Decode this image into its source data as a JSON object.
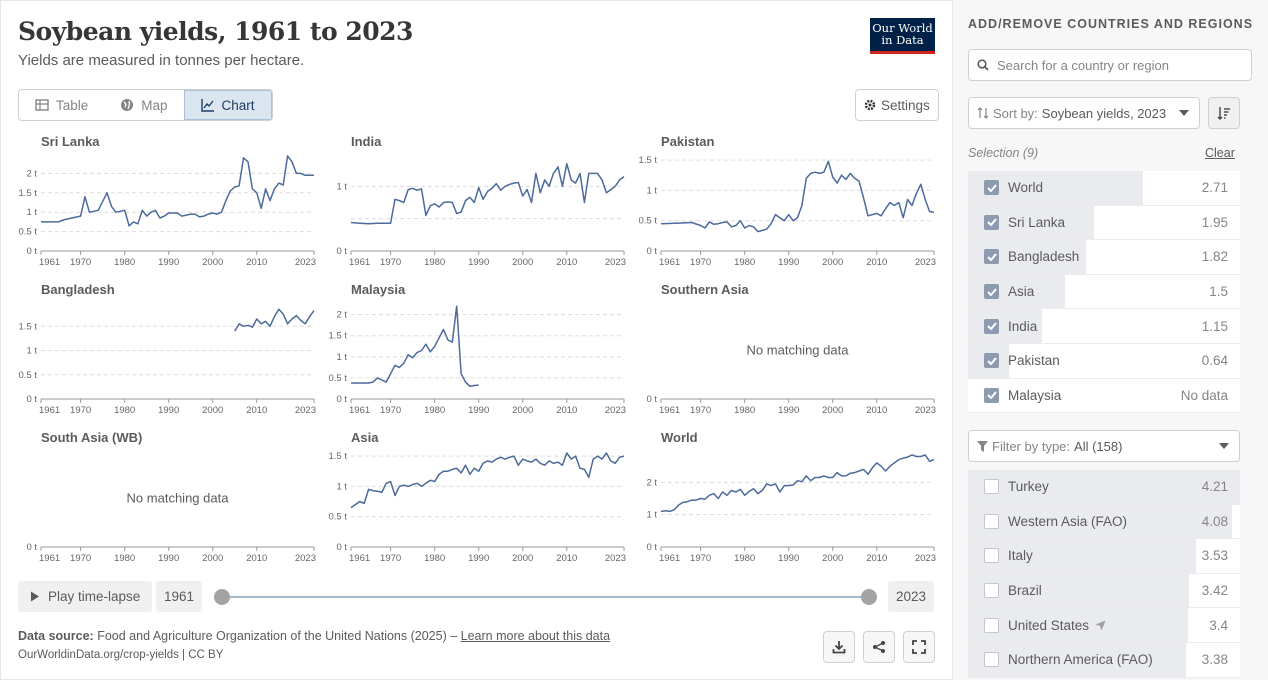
{
  "header": {
    "title": "Soybean yields, 1961 to 2023",
    "subtitle": "Yields are measured in tonnes per hectare.",
    "logo_line1": "Our World",
    "logo_line2": "in Data"
  },
  "tabs": [
    {
      "label": "Table",
      "icon": "table-icon"
    },
    {
      "label": "Map",
      "icon": "globe-icon"
    },
    {
      "label": "Chart",
      "icon": "line-chart-icon",
      "active": true
    }
  ],
  "settings_label": "Settings",
  "colors": {
    "line": "#4c6a9c",
    "accent": "#ce261e",
    "brand": "#002147"
  },
  "timeline": {
    "play_label": "Play time-lapse",
    "start_year": "1961",
    "end_year": "2023"
  },
  "footer": {
    "source_label": "Data source:",
    "source_text": "Food and Agriculture Organization of the United Nations (2025) –",
    "learn_more": "Learn more about this data",
    "url": "OurWorldinData.org/crop-yields | CC BY"
  },
  "sidebar": {
    "heading": "ADD/REMOVE COUNTRIES AND REGIONS",
    "search_placeholder": "Search for a country or region",
    "sort_label": "Sort by:",
    "sort_value": "Soybean yields, 2023",
    "selection_label": "Selection (9)",
    "clear_label": "Clear",
    "selected": [
      {
        "name": "World",
        "value": "2.71",
        "fraction": 0.644
      },
      {
        "name": "Sri Lanka",
        "value": "1.95",
        "fraction": 0.463
      },
      {
        "name": "Bangladesh",
        "value": "1.82",
        "fraction": 0.432
      },
      {
        "name": "Asia",
        "value": "1.5",
        "fraction": 0.356
      },
      {
        "name": "India",
        "value": "1.15",
        "fraction": 0.273
      },
      {
        "name": "Pakistan",
        "value": "0.64",
        "fraction": 0.152
      },
      {
        "name": "Malaysia",
        "value": "No data",
        "fraction": 0
      }
    ],
    "filter_label": "Filter by type:",
    "filter_value": "All (158)",
    "others": [
      {
        "name": "Turkey",
        "value": "4.21",
        "fraction": 1.0
      },
      {
        "name": "Western Asia (FAO)",
        "value": "4.08",
        "fraction": 0.969
      },
      {
        "name": "Italy",
        "value": "3.53",
        "fraction": 0.838
      },
      {
        "name": "Brazil",
        "value": "3.42",
        "fraction": 0.812
      },
      {
        "name": "United States",
        "value": "3.4",
        "fraction": 0.808,
        "icon": "location-arrow-icon"
      },
      {
        "name": "Northern America (FAO)",
        "value": "3.38",
        "fraction": 0.803
      }
    ]
  },
  "chart_data": [
    {
      "type": "line",
      "title": "Sri Lanka",
      "xlim": [
        1961,
        2023
      ],
      "x_ticks": [
        "1961",
        "1970",
        "1980",
        "1990",
        "2000",
        "2010",
        "2023"
      ],
      "y_ticks": [
        0,
        0.5,
        1,
        1.5,
        2
      ],
      "y_tick_labels": [
        "0 t",
        "0.5 t",
        "1 t",
        "1.5 t",
        "2 t"
      ],
      "ylim": [
        0,
        2.5
      ],
      "series": [
        {
          "x": [
            1961,
            1963,
            1965,
            1966,
            1968,
            1970,
            1971,
            1972,
            1974,
            1976,
            1977,
            1978,
            1980,
            1981,
            1982,
            1983,
            1984,
            1985,
            1986,
            1987,
            1988,
            1989,
            1990,
            1992,
            1993,
            1995,
            1996,
            1997,
            1998,
            1999,
            2000,
            2001,
            2002,
            2003,
            2004,
            2005,
            2006,
            2007,
            2008,
            2009,
            2010,
            2011,
            2012,
            2013,
            2014,
            2015,
            2016,
            2017,
            2018,
            2019,
            2020,
            2021,
            2022,
            2023
          ],
          "y": [
            0.75,
            0.75,
            0.75,
            0.8,
            0.85,
            0.9,
            1.4,
            1.0,
            1.05,
            1.5,
            1.15,
            1.0,
            1.05,
            0.65,
            0.75,
            0.7,
            1.05,
            0.9,
            1.0,
            1.05,
            0.85,
            0.9,
            0.98,
            0.98,
            0.9,
            0.95,
            0.95,
            0.88,
            0.9,
            0.95,
            0.98,
            0.95,
            1.0,
            1.3,
            1.55,
            1.65,
            1.68,
            2.4,
            2.3,
            1.6,
            1.5,
            1.1,
            1.6,
            1.3,
            1.6,
            1.75,
            1.7,
            2.45,
            2.3,
            2.0,
            2.0,
            1.95,
            1.95,
            1.95
          ]
        }
      ]
    },
    {
      "type": "line",
      "title": "India",
      "xlim": [
        1961,
        2023
      ],
      "x_ticks": [
        "1961",
        "1970",
        "1980",
        "1990",
        "2000",
        "2010",
        "2023"
      ],
      "y_ticks": [
        0,
        0.5,
        1
      ],
      "y_tick_labels": [
        "0 t",
        "",
        "1 t"
      ],
      "ylim": [
        0,
        1.5
      ],
      "series": [
        {
          "x": [
            1961,
            1963,
            1965,
            1967,
            1969,
            1970,
            1971,
            1972,
            1973,
            1974,
            1975,
            1976,
            1977,
            1978,
            1979,
            1980,
            1981,
            1982,
            1983,
            1984,
            1985,
            1986,
            1987,
            1988,
            1989,
            1990,
            1991,
            1992,
            1993,
            1994,
            1995,
            1996,
            1997,
            1998,
            1999,
            2000,
            2001,
            2002,
            2003,
            2004,
            2005,
            2006,
            2007,
            2008,
            2009,
            2010,
            2011,
            2012,
            2013,
            2014,
            2015,
            2016,
            2017,
            2018,
            2019,
            2020,
            2021,
            2022,
            2023
          ],
          "y": [
            0.44,
            0.43,
            0.42,
            0.43,
            0.43,
            0.43,
            0.8,
            0.78,
            0.75,
            0.95,
            0.97,
            0.94,
            0.96,
            0.55,
            0.7,
            0.73,
            0.68,
            0.75,
            0.76,
            0.75,
            0.58,
            0.6,
            0.78,
            0.83,
            0.75,
            0.98,
            0.8,
            0.92,
            0.97,
            1.04,
            0.94,
            1.0,
            1.03,
            1.05,
            1.06,
            0.85,
            0.95,
            0.75,
            1.2,
            0.9,
            1.1,
            1.0,
            1.2,
            1.3,
            1.0,
            1.35,
            1.1,
            1.05,
            1.2,
            0.75,
            1.2,
            1.2,
            1.2,
            1.1,
            0.9,
            0.95,
            1.0,
            1.1,
            1.15
          ]
        }
      ]
    },
    {
      "type": "line",
      "title": "Pakistan",
      "xlim": [
        1961,
        2023
      ],
      "x_ticks": [
        "1961",
        "1970",
        "1980",
        "1990",
        "2000",
        "2010",
        "2023"
      ],
      "y_ticks": [
        0,
        0.5,
        1,
        1.5
      ],
      "y_tick_labels": [
        "0 t",
        "0.5 t",
        "1 t",
        "1.5 t"
      ],
      "ylim": [
        0,
        1.6
      ],
      "series": [
        {
          "x": [
            1961,
            1965,
            1968,
            1970,
            1971,
            1972,
            1973,
            1974,
            1975,
            1976,
            1977,
            1978,
            1979,
            1980,
            1981,
            1982,
            1983,
            1984,
            1985,
            1986,
            1987,
            1988,
            1989,
            1990,
            1991,
            1992,
            1993,
            1994,
            1995,
            1996,
            1997,
            1998,
            1999,
            2000,
            2001,
            2002,
            2003,
            2004,
            2005,
            2006,
            2007,
            2008,
            2009,
            2010,
            2011,
            2012,
            2013,
            2014,
            2015,
            2016,
            2017,
            2018,
            2019,
            2020,
            2021,
            2022,
            2023
          ],
          "y": [
            0.45,
            0.46,
            0.47,
            0.42,
            0.38,
            0.48,
            0.44,
            0.45,
            0.47,
            0.48,
            0.4,
            0.42,
            0.5,
            0.38,
            0.42,
            0.4,
            0.32,
            0.34,
            0.36,
            0.45,
            0.6,
            0.55,
            0.5,
            0.6,
            0.5,
            0.55,
            0.75,
            1.2,
            1.28,
            1.3,
            1.28,
            1.3,
            1.48,
            1.22,
            1.12,
            1.25,
            1.18,
            1.28,
            1.2,
            1.15,
            0.88,
            0.58,
            0.6,
            0.62,
            0.58,
            0.7,
            0.8,
            0.75,
            0.8,
            0.55,
            0.85,
            0.75,
            0.95,
            1.1,
            0.85,
            0.65,
            0.64
          ]
        }
      ]
    },
    {
      "type": "line",
      "title": "Bangladesh",
      "xlim": [
        1961,
        2023
      ],
      "x_ticks": [
        "1961",
        "1970",
        "1980",
        "1990",
        "2000",
        "2010",
        "2023"
      ],
      "y_ticks": [
        0,
        0.5,
        1,
        1.5
      ],
      "y_tick_labels": [
        "0 t",
        "0.5 t",
        "1 t",
        "1.5 t"
      ],
      "ylim": [
        0,
        2.0
      ],
      "series": [
        {
          "x": [
            2005,
            2006,
            2007,
            2008,
            2009,
            2010,
            2011,
            2012,
            2013,
            2014,
            2015,
            2016,
            2017,
            2018,
            2019,
            2020,
            2021,
            2022,
            2023
          ],
          "y": [
            1.4,
            1.55,
            1.5,
            1.52,
            1.48,
            1.65,
            1.55,
            1.6,
            1.5,
            1.7,
            1.85,
            1.75,
            1.55,
            1.65,
            1.72,
            1.62,
            1.55,
            1.7,
            1.82
          ]
        }
      ]
    },
    {
      "type": "line",
      "title": "Malaysia",
      "xlim": [
        1961,
        2023
      ],
      "x_ticks": [
        "1961",
        "1970",
        "1980",
        "1990",
        "2000",
        "2010",
        "2023"
      ],
      "y_ticks": [
        0,
        0.5,
        1,
        1.5,
        2
      ],
      "y_tick_labels": [
        "0 t",
        "0.5 t",
        "1 t",
        "1.5 t",
        "2 t"
      ],
      "ylim": [
        0,
        2.3
      ],
      "series": [
        {
          "x": [
            1961,
            1963,
            1965,
            1966,
            1967,
            1968,
            1969,
            1970,
            1971,
            1972,
            1973,
            1974,
            1975,
            1976,
            1977,
            1978,
            1979,
            1980,
            1981,
            1982,
            1983,
            1984,
            1985,
            1986,
            1987,
            1988,
            1989,
            1990
          ],
          "y": [
            0.38,
            0.38,
            0.38,
            0.4,
            0.5,
            0.45,
            0.4,
            0.6,
            0.8,
            0.75,
            0.85,
            1.05,
            0.98,
            1.1,
            1.15,
            1.3,
            1.12,
            1.25,
            1.45,
            1.65,
            1.4,
            1.35,
            2.2,
            0.6,
            0.4,
            0.3,
            0.32,
            0.33
          ]
        }
      ]
    },
    {
      "type": "line",
      "title": "Southern Asia",
      "no_data": "No matching data",
      "x_ticks": [
        "1961",
        "1970",
        "1980",
        "1990",
        "2000",
        "2010",
        "2023"
      ],
      "y_ticks": [
        0
      ],
      "y_tick_labels": [
        "0 t"
      ],
      "series": []
    },
    {
      "type": "line",
      "title": "South Asia (WB)",
      "no_data": "No matching data",
      "x_ticks": [
        "1961",
        "1970",
        "1980",
        "1990",
        "2000",
        "2010",
        "2023"
      ],
      "y_ticks": [
        0
      ],
      "y_tick_labels": [
        "0 t"
      ],
      "series": []
    },
    {
      "type": "line",
      "title": "Asia",
      "xlim": [
        1961,
        2023
      ],
      "x_ticks": [
        "1961",
        "1970",
        "1980",
        "1990",
        "2000",
        "2010",
        "2023"
      ],
      "y_ticks": [
        0,
        0.5,
        1,
        1.5
      ],
      "y_tick_labels": [
        "0 t",
        "0.5 t",
        "1 t",
        "1.5 t"
      ],
      "ylim": [
        0,
        1.6
      ],
      "series": [
        {
          "x": [
            1961,
            1962,
            1963,
            1964,
            1965,
            1966,
            1967,
            1968,
            1969,
            1970,
            1971,
            1972,
            1973,
            1974,
            1975,
            1976,
            1977,
            1978,
            1979,
            1980,
            1981,
            1982,
            1983,
            1984,
            1985,
            1986,
            1987,
            1988,
            1989,
            1990,
            1991,
            1992,
            1993,
            1994,
            1995,
            1996,
            1997,
            1998,
            1999,
            2000,
            2001,
            2002,
            2003,
            2004,
            2005,
            2006,
            2007,
            2008,
            2009,
            2010,
            2011,
            2012,
            2013,
            2014,
            2015,
            2016,
            2017,
            2018,
            2019,
            2020,
            2021,
            2022,
            2023
          ],
          "y": [
            0.65,
            0.7,
            0.75,
            0.72,
            0.95,
            0.93,
            0.92,
            0.9,
            1.05,
            1.08,
            0.85,
            1.0,
            1.02,
            1.0,
            1.03,
            1.05,
            1.0,
            1.05,
            1.1,
            1.08,
            1.2,
            1.25,
            1.25,
            1.28,
            1.3,
            1.22,
            1.35,
            1.2,
            1.3,
            1.25,
            1.38,
            1.42,
            1.4,
            1.45,
            1.48,
            1.45,
            1.48,
            1.5,
            1.35,
            1.45,
            1.42,
            1.4,
            1.45,
            1.38,
            1.35,
            1.42,
            1.38,
            1.4,
            1.35,
            1.55,
            1.45,
            1.5,
            1.3,
            1.28,
            1.15,
            1.45,
            1.5,
            1.45,
            1.55,
            1.42,
            1.38,
            1.48,
            1.5
          ]
        }
      ]
    },
    {
      "type": "line",
      "title": "World",
      "xlim": [
        1961,
        2023
      ],
      "x_ticks": [
        "1961",
        "1970",
        "1980",
        "1990",
        "2000",
        "2010",
        "2023"
      ],
      "y_ticks": [
        0,
        1,
        2
      ],
      "y_tick_labels": [
        "0 t",
        "1 t",
        "2 t"
      ],
      "ylim": [
        0,
        3.0
      ],
      "series": [
        {
          "x": [
            1961,
            1962,
            1963,
            1964,
            1965,
            1966,
            1967,
            1968,
            1969,
            1970,
            1971,
            1972,
            1973,
            1974,
            1975,
            1976,
            1977,
            1978,
            1979,
            1980,
            1981,
            1982,
            1983,
            1984,
            1985,
            1986,
            1987,
            1988,
            1989,
            1990,
            1991,
            1992,
            1993,
            1994,
            1995,
            1996,
            1997,
            1998,
            1999,
            2000,
            2001,
            2002,
            2003,
            2004,
            2005,
            2006,
            2007,
            2008,
            2009,
            2010,
            2011,
            2012,
            2013,
            2014,
            2015,
            2016,
            2017,
            2018,
            2019,
            2020,
            2021,
            2022,
            2023
          ],
          "y": [
            1.1,
            1.12,
            1.1,
            1.15,
            1.3,
            1.38,
            1.4,
            1.45,
            1.45,
            1.5,
            1.48,
            1.6,
            1.65,
            1.5,
            1.7,
            1.6,
            1.75,
            1.7,
            1.78,
            1.6,
            1.72,
            1.8,
            1.65,
            1.75,
            1.95,
            1.9,
            1.95,
            1.7,
            1.9,
            1.9,
            1.92,
            2.05,
            2.02,
            2.2,
            2.05,
            2.15,
            2.15,
            2.2,
            2.15,
            2.15,
            2.3,
            2.2,
            2.2,
            2.28,
            2.3,
            2.35,
            2.4,
            2.25,
            2.45,
            2.6,
            2.5,
            2.35,
            2.5,
            2.6,
            2.7,
            2.75,
            2.78,
            2.85,
            2.8,
            2.8,
            2.85,
            2.65,
            2.71
          ]
        }
      ]
    }
  ]
}
